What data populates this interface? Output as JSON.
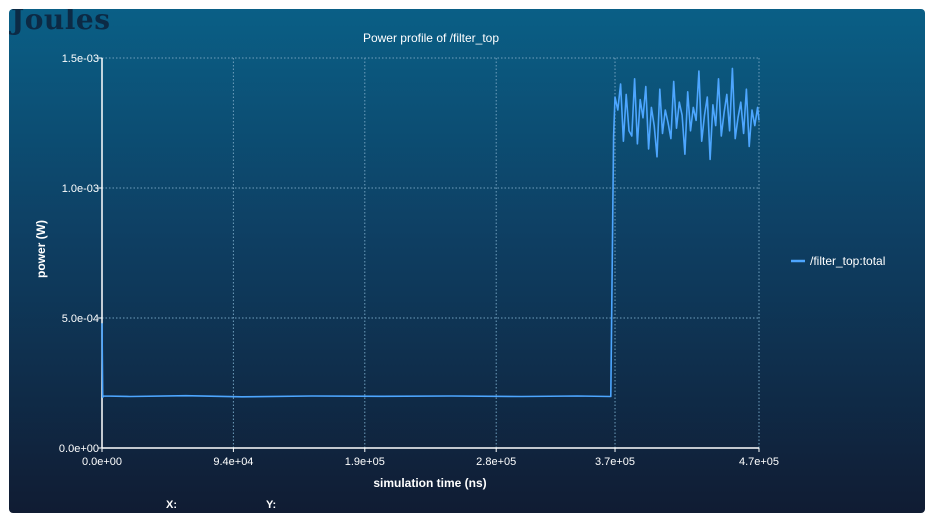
{
  "brand": {
    "logo_text": "Joules"
  },
  "readout": {
    "x_label": "X:",
    "y_label": "Y:"
  },
  "colors": {
    "series": "#4da6ff",
    "grid": "#6f9fbd",
    "axis": "#ffffff",
    "text": "#ffffff"
  },
  "chart_data": {
    "type": "line",
    "title": "Power profile of /filter_top",
    "xlabel": "simulation time (ns)",
    "ylabel": "power (W)",
    "xlim": [
      0,
      470000
    ],
    "ylim": [
      0,
      0.0015
    ],
    "x_ticks": [
      {
        "value": 0,
        "label": "0.0e+00"
      },
      {
        "value": 94000,
        "label": "9.4e+04"
      },
      {
        "value": 188000,
        "label": "1.9e+05"
      },
      {
        "value": 282000,
        "label": "2.8e+05"
      },
      {
        "value": 367000,
        "label": "3.7e+05"
      },
      {
        "value": 470000,
        "label": "4.7e+05"
      }
    ],
    "y_ticks": [
      {
        "value": 0,
        "label": "0.0e+00"
      },
      {
        "value": 0.0005,
        "label": "5.0e-04"
      },
      {
        "value": 0.001,
        "label": "1.0e-03"
      },
      {
        "value": 0.0015,
        "label": "1.5e-03"
      }
    ],
    "grid": true,
    "legend_position": "right",
    "series": [
      {
        "name": "/filter_top:total",
        "x": [
          0,
          500,
          1000,
          20000,
          60000,
          100000,
          150000,
          200000,
          250000,
          300000,
          340000,
          364000,
          366000,
          367000,
          369000,
          371000,
          373000,
          375000,
          377000,
          379000,
          381000,
          383000,
          385000,
          387000,
          389000,
          391000,
          393000,
          395000,
          397000,
          399000,
          401000,
          403000,
          405000,
          407000,
          409000,
          411000,
          413000,
          415000,
          417000,
          419000,
          421000,
          423000,
          425000,
          427000,
          429000,
          431000,
          433000,
          435000,
          437000,
          439000,
          441000,
          443000,
          445000,
          447000,
          449000,
          451000,
          453000,
          455000,
          457000,
          459000,
          461000,
          463000,
          465000,
          467000,
          469000,
          470000
        ],
        "y": [
          0.00048,
          0.000195,
          0.0002,
          0.000198,
          0.000201,
          0.000197,
          0.0002,
          0.000199,
          0.0002,
          0.000198,
          0.0002,
          0.000198,
          0.0012,
          0.00135,
          0.0013,
          0.0014,
          0.00118,
          0.00136,
          0.00122,
          0.0012,
          0.00142,
          0.00117,
          0.00134,
          0.00127,
          0.00139,
          0.00115,
          0.00131,
          0.00124,
          0.00112,
          0.00138,
          0.00121,
          0.0013,
          0.00125,
          0.00119,
          0.00141,
          0.00123,
          0.00133,
          0.00128,
          0.00113,
          0.00137,
          0.00122,
          0.00131,
          0.00126,
          0.00145,
          0.00118,
          0.00128,
          0.00135,
          0.00111,
          0.00132,
          0.00124,
          0.00142,
          0.0012,
          0.00129,
          0.00136,
          0.00122,
          0.00146,
          0.00119,
          0.00127,
          0.00133,
          0.00121,
          0.00138,
          0.00116,
          0.0013,
          0.00124,
          0.00131,
          0.00126
        ]
      }
    ]
  }
}
